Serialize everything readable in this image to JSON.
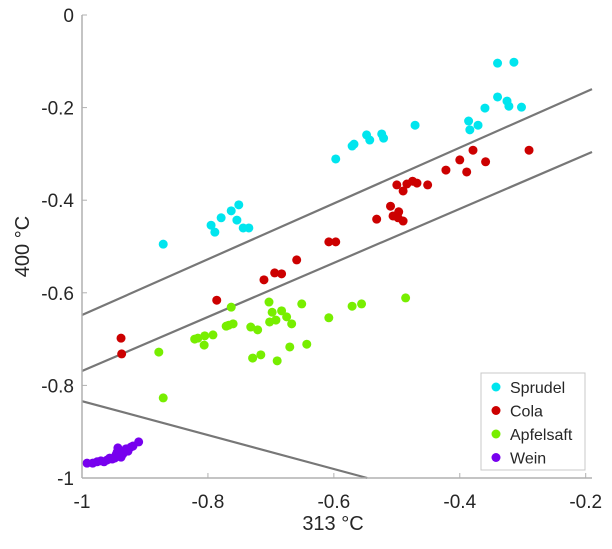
{
  "chart_data": {
    "type": "scatter",
    "title": "",
    "xlabel": "313 °C",
    "ylabel": "400 °C",
    "xlim": [
      -1,
      -0.19
    ],
    "ylim": [
      -1,
      0
    ],
    "xticks": [
      -1,
      -0.8,
      -0.6,
      -0.4,
      -0.2
    ],
    "xtick_labels": [
      "-1",
      "-0.8",
      "-0.6",
      "-0.4",
      "-0.2"
    ],
    "yticks": [
      0,
      -0.2,
      -0.4,
      -0.6,
      -0.8,
      -1
    ],
    "ytick_labels": [
      "0",
      "-0.2",
      "-0.4",
      "-0.6",
      "-0.8",
      "-1"
    ],
    "grid": false,
    "legend_position": "bottom-right",
    "series": [
      {
        "name": "Sprudel",
        "color": "#00e5ee",
        "points": [
          [
            -0.34,
            -0.104
          ],
          [
            -0.314,
            -0.102
          ],
          [
            -0.34,
            -0.177
          ],
          [
            -0.325,
            -0.186
          ],
          [
            -0.322,
            -0.197
          ],
          [
            -0.302,
            -0.199
          ],
          [
            -0.36,
            -0.201
          ],
          [
            -0.386,
            -0.229
          ],
          [
            -0.371,
            -0.238
          ],
          [
            -0.384,
            -0.248
          ],
          [
            -0.471,
            -0.238
          ],
          [
            -0.548,
            -0.259
          ],
          [
            -0.524,
            -0.257
          ],
          [
            -0.521,
            -0.266
          ],
          [
            -0.543,
            -0.27
          ],
          [
            -0.571,
            -0.283
          ],
          [
            -0.568,
            -0.279
          ],
          [
            -0.597,
            -0.311
          ],
          [
            -0.871,
            -0.495
          ],
          [
            -0.795,
            -0.454
          ],
          [
            -0.789,
            -0.469
          ],
          [
            -0.779,
            -0.438
          ],
          [
            -0.763,
            -0.423
          ],
          [
            -0.751,
            -0.41
          ],
          [
            -0.754,
            -0.443
          ],
          [
            -0.744,
            -0.46
          ],
          [
            -0.735,
            -0.46
          ]
        ]
      },
      {
        "name": "Cola",
        "color": "#cc0000",
        "points": [
          [
            -0.29,
            -0.292
          ],
          [
            -0.379,
            -0.292
          ],
          [
            -0.359,
            -0.317
          ],
          [
            -0.4,
            -0.313
          ],
          [
            -0.389,
            -0.339
          ],
          [
            -0.422,
            -0.335
          ],
          [
            -0.451,
            -0.367
          ],
          [
            -0.475,
            -0.359
          ],
          [
            -0.484,
            -0.365
          ],
          [
            -0.49,
            -0.38
          ],
          [
            -0.5,
            -0.367
          ],
          [
            -0.468,
            -0.363
          ],
          [
            -0.51,
            -0.413
          ],
          [
            -0.497,
            -0.425
          ],
          [
            -0.506,
            -0.434
          ],
          [
            -0.498,
            -0.438
          ],
          [
            -0.532,
            -0.441
          ],
          [
            -0.49,
            -0.445
          ],
          [
            -0.597,
            -0.49
          ],
          [
            -0.608,
            -0.49
          ],
          [
            -0.659,
            -0.529
          ],
          [
            -0.683,
            -0.559
          ],
          [
            -0.694,
            -0.557
          ],
          [
            -0.711,
            -0.572
          ],
          [
            -0.786,
            -0.616
          ],
          [
            -0.938,
            -0.698
          ],
          [
            -0.937,
            -0.732
          ]
        ]
      },
      {
        "name": "Apfelsaft",
        "color": "#77ee00",
        "points": [
          [
            -0.486,
            -0.611
          ],
          [
            -0.556,
            -0.624
          ],
          [
            -0.571,
            -0.629
          ],
          [
            -0.608,
            -0.654
          ],
          [
            -0.651,
            -0.624
          ],
          [
            -0.667,
            -0.667
          ],
          [
            -0.675,
            -0.652
          ],
          [
            -0.683,
            -0.639
          ],
          [
            -0.692,
            -0.659
          ],
          [
            -0.702,
            -0.663
          ],
          [
            -0.698,
            -0.642
          ],
          [
            -0.703,
            -0.62
          ],
          [
            -0.721,
            -0.68
          ],
          [
            -0.732,
            -0.674
          ],
          [
            -0.76,
            -0.667
          ],
          [
            -0.767,
            -0.67
          ],
          [
            -0.763,
            -0.631
          ],
          [
            -0.771,
            -0.672
          ],
          [
            -0.792,
            -0.691
          ],
          [
            -0.805,
            -0.693
          ],
          [
            -0.816,
            -0.698
          ],
          [
            -0.821,
            -0.7
          ],
          [
            -0.806,
            -0.713
          ],
          [
            -0.878,
            -0.728
          ],
          [
            -0.871,
            -0.827
          ],
          [
            -0.67,
            -0.717
          ],
          [
            -0.643,
            -0.711
          ],
          [
            -0.69,
            -0.747
          ],
          [
            -0.729,
            -0.741
          ],
          [
            -0.716,
            -0.734
          ]
        ]
      },
      {
        "name": "Wein",
        "color": "#7700ee",
        "points": [
          [
            -0.992,
            -0.968
          ],
          [
            -0.983,
            -0.968
          ],
          [
            -0.976,
            -0.965
          ],
          [
            -0.97,
            -0.963
          ],
          [
            -0.965,
            -0.965
          ],
          [
            -0.96,
            -0.961
          ],
          [
            -0.956,
            -0.957
          ],
          [
            -0.952,
            -0.959
          ],
          [
            -0.948,
            -0.957
          ],
          [
            -0.946,
            -0.95
          ],
          [
            -0.944,
            -0.944
          ],
          [
            -0.943,
            -0.935
          ],
          [
            -0.94,
            -0.95
          ],
          [
            -0.938,
            -0.955
          ],
          [
            -0.935,
            -0.948
          ],
          [
            -0.93,
            -0.937
          ],
          [
            -0.927,
            -0.942
          ],
          [
            -0.922,
            -0.933
          ],
          [
            -0.919,
            -0.931
          ],
          [
            -0.91,
            -0.922
          ]
        ]
      }
    ],
    "lines": [
      {
        "name": "boundary-1",
        "color": "#777777",
        "from": [
          -1,
          -0.648
        ],
        "to": [
          -0.19,
          -0.16
        ]
      },
      {
        "name": "boundary-2",
        "color": "#777777",
        "from": [
          -1,
          -0.769
        ],
        "to": [
          -0.19,
          -0.296
        ]
      },
      {
        "name": "boundary-3",
        "color": "#777777",
        "from": [
          -1,
          -0.834
        ],
        "to": [
          -0.547,
          -1
        ]
      }
    ]
  }
}
